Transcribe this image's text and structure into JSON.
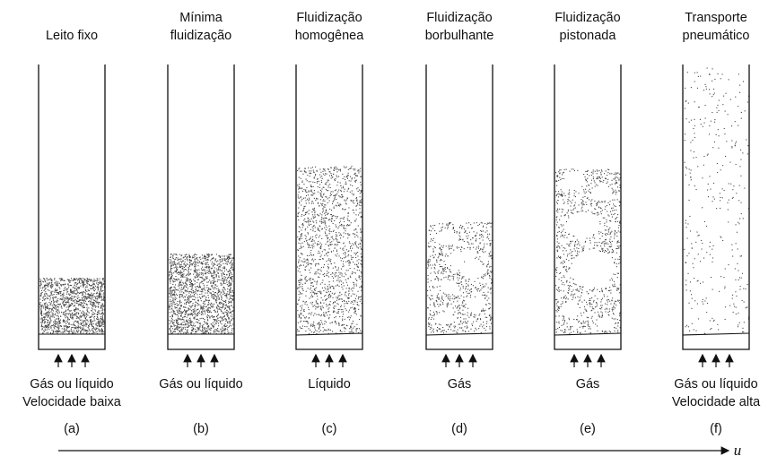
{
  "columns": [
    {
      "title": [
        "Leito fixo"
      ],
      "fluid": [
        "Gás ou líquido",
        "Velocidade baixa"
      ],
      "label": "(a)"
    },
    {
      "title": [
        "Mínima",
        "fluidização"
      ],
      "fluid": [
        "Gás ou líquido"
      ],
      "label": "(b)"
    },
    {
      "title": [
        "Fluidização",
        "homogênea"
      ],
      "fluid": [
        "Líquido"
      ],
      "label": "(c)"
    },
    {
      "title": [
        "Fluidização",
        "borbulhante"
      ],
      "fluid": [
        "Gás"
      ],
      "label": "(d)"
    },
    {
      "title": [
        "Fluidização",
        "pistonada"
      ],
      "fluid": [
        "Gás"
      ],
      "label": "(e)"
    },
    {
      "title": [
        "Transporte",
        "pneumático"
      ],
      "fluid": [
        "Gás ou líquido",
        "Velocidade alta"
      ],
      "label": "(f)"
    }
  ],
  "axis_label": "u"
}
